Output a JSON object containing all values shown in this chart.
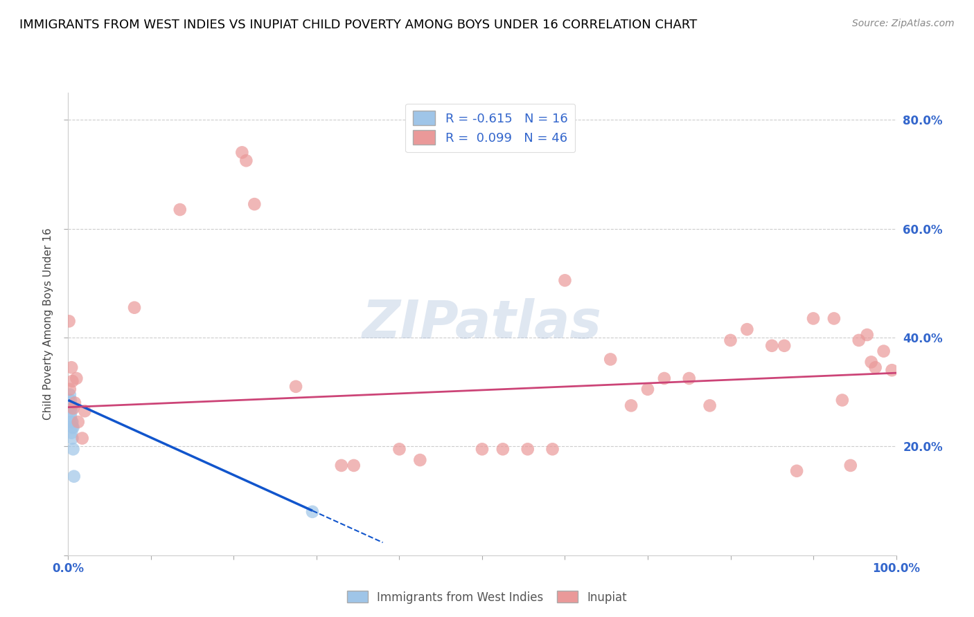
{
  "title": "IMMIGRANTS FROM WEST INDIES VS INUPIAT CHILD POVERTY AMONG BOYS UNDER 16 CORRELATION CHART",
  "source_text": "Source: ZipAtlas.com",
  "ylabel": "Child Poverty Among Boys Under 16",
  "xlim": [
    0,
    1.0
  ],
  "ylim": [
    0,
    0.85
  ],
  "x_ticks": [
    0.0,
    0.1,
    0.2,
    0.3,
    0.4,
    0.5,
    0.6,
    0.7,
    0.8,
    0.9,
    1.0
  ],
  "y_ticks": [
    0.0,
    0.2,
    0.4,
    0.6,
    0.8
  ],
  "y_tick_labels_right": [
    "",
    "20.0%",
    "40.0%",
    "60.0%",
    "80.0%"
  ],
  "grid_color": "#cccccc",
  "background_color": "#ffffff",
  "blue_color": "#9fc5e8",
  "pink_color": "#ea9999",
  "blue_line_color": "#1155cc",
  "pink_line_color": "#cc4477",
  "R_blue": -0.615,
  "N_blue": 16,
  "R_pink": 0.099,
  "N_pink": 46,
  "blue_points_x": [
    0.001,
    0.002,
    0.002,
    0.003,
    0.003,
    0.003,
    0.004,
    0.004,
    0.004,
    0.005,
    0.005,
    0.005,
    0.006,
    0.006,
    0.007,
    0.295
  ],
  "blue_points_y": [
    0.285,
    0.295,
    0.275,
    0.285,
    0.27,
    0.255,
    0.265,
    0.245,
    0.225,
    0.245,
    0.235,
    0.215,
    0.235,
    0.195,
    0.145,
    0.08
  ],
  "pink_points_x": [
    0.001,
    0.002,
    0.004,
    0.005,
    0.006,
    0.008,
    0.01,
    0.012,
    0.017,
    0.02,
    0.08,
    0.135,
    0.21,
    0.215,
    0.225,
    0.275,
    0.33,
    0.345,
    0.4,
    0.425,
    0.5,
    0.525,
    0.555,
    0.585,
    0.6,
    0.655,
    0.68,
    0.7,
    0.72,
    0.75,
    0.775,
    0.8,
    0.82,
    0.85,
    0.865,
    0.88,
    0.9,
    0.925,
    0.935,
    0.945,
    0.955,
    0.965,
    0.97,
    0.975,
    0.985,
    0.995
  ],
  "pink_points_y": [
    0.43,
    0.305,
    0.345,
    0.32,
    0.27,
    0.28,
    0.325,
    0.245,
    0.215,
    0.265,
    0.455,
    0.635,
    0.74,
    0.725,
    0.645,
    0.31,
    0.165,
    0.165,
    0.195,
    0.175,
    0.195,
    0.195,
    0.195,
    0.195,
    0.505,
    0.36,
    0.275,
    0.305,
    0.325,
    0.325,
    0.275,
    0.395,
    0.415,
    0.385,
    0.385,
    0.155,
    0.435,
    0.435,
    0.285,
    0.165,
    0.395,
    0.405,
    0.355,
    0.345,
    0.375,
    0.34
  ],
  "watermark_text": "ZIPatlas",
  "legend_fontsize": 13,
  "title_fontsize": 13,
  "axis_label_fontsize": 11,
  "tick_label_fontsize": 12
}
